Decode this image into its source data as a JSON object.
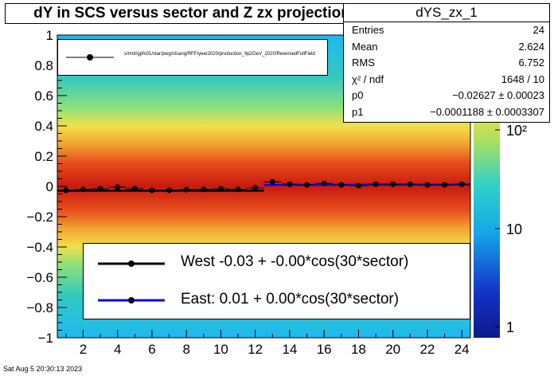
{
  "title": "dY in SCS versus sector and Z zx projection",
  "stats": {
    "name": "dYS_zx_1",
    "rows": [
      {
        "label": "Entries",
        "value": "24"
      },
      {
        "label": "Mean",
        "value": "2.624"
      },
      {
        "label": "RMS",
        "value": "6.752"
      },
      {
        "label": "χ² / ndf",
        "value": "1648 / 10"
      },
      {
        "label": "p0",
        "value": "−0.02627 ± 0.00023"
      },
      {
        "label": "p1",
        "value": "−0.0001188 ± 0.0003307"
      }
    ]
  },
  "legend_top": {
    "path": "s/mnt/gpfs01/star/pwg/ctsang/RFF/year2020/production_9p2GeV_2020/ReversedFullField"
  },
  "legend_bottom": [
    {
      "label": "West -0.03 + -0.00*cos(30*sector)",
      "color": "#000000"
    },
    {
      "label": "East:  0.01 +  0.00*cos(30*sector)",
      "color": "#0000ff"
    }
  ],
  "timestamp": "Sat Aug  5 20:30:13 2023",
  "chart_data": {
    "type": "scatter",
    "title": "dY in SCS versus sector and Z zx projection",
    "xlabel": "",
    "ylabel": "",
    "xlim": [
      0.5,
      24.5
    ],
    "ylim": [
      -1,
      1
    ],
    "x_ticks": [
      2,
      4,
      6,
      8,
      10,
      12,
      14,
      16,
      18,
      20,
      22,
      24
    ],
    "y_ticks": [
      -1,
      -0.8,
      -0.6,
      -0.4,
      -0.2,
      0,
      0.2,
      0.4,
      0.6,
      0.8,
      1
    ],
    "colorbar": {
      "scale": "log",
      "ticks": [
        "1",
        "10",
        "10²"
      ]
    },
    "series": [
      {
        "name": "West",
        "color": "#000000",
        "x": [
          1,
          2,
          3,
          4,
          5,
          6,
          7,
          8,
          9,
          10,
          11,
          12
        ],
        "y": [
          -0.025,
          -0.02,
          -0.015,
          -0.005,
          -0.015,
          -0.025,
          -0.025,
          -0.022,
          -0.02,
          -0.015,
          -0.02,
          -0.01
        ],
        "fit": {
          "x": [
            0.5,
            12.5
          ],
          "y": [
            -0.028,
            -0.028
          ]
        }
      },
      {
        "name": "East",
        "color": "#0000ff",
        "x": [
          13,
          14,
          15,
          16,
          17,
          18,
          19,
          20,
          21,
          22,
          23,
          24
        ],
        "y": [
          0.03,
          0.015,
          0.01,
          0.02,
          0.01,
          0.005,
          0.015,
          0.015,
          0.015,
          0.01,
          0.01,
          0.015
        ],
        "fit": {
          "x": [
            12.5,
            24.5
          ],
          "y": [
            0.01,
            0.012
          ]
        }
      }
    ],
    "grid": false,
    "legend": "bottom"
  }
}
